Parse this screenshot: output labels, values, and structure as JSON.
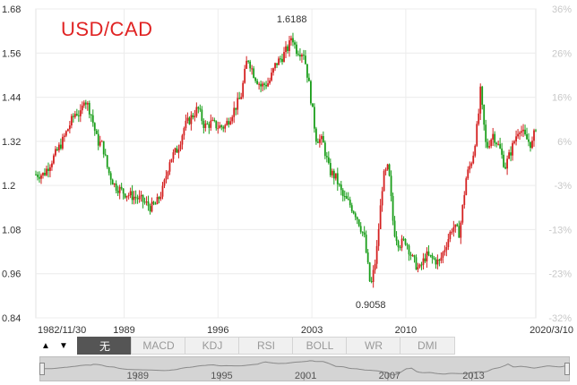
{
  "chart_data": {
    "type": "candlestick",
    "title": "USD/CAD",
    "x_start_label": "1982/11/30",
    "x_end_label": "2020/3/10",
    "x_ticks": [
      "1989",
      "1996",
      "2003",
      "2010"
    ],
    "y_ticks": [
      "0.84",
      "0.96",
      "1.08",
      "1.2",
      "1.32",
      "1.44",
      "1.56",
      "1.68"
    ],
    "y2_ticks": [
      "-32%",
      "-23%",
      "-13%",
      "-3%",
      "6%",
      "16%",
      "26%",
      "36%"
    ],
    "ylim": [
      0.84,
      1.68
    ],
    "max_label": "1.6188",
    "min_label": "0.9058",
    "up_color": "#d42020",
    "down_color": "#1a9e1a",
    "series": [
      {
        "t": 1982.92,
        "v": 1.23
      },
      {
        "t": 1983.5,
        "v": 1.23
      },
      {
        "t": 1984.3,
        "v": 1.28
      },
      {
        "t": 1984.9,
        "v": 1.32
      },
      {
        "t": 1985.5,
        "v": 1.37
      },
      {
        "t": 1985.9,
        "v": 1.4
      },
      {
        "t": 1986.3,
        "v": 1.39
      },
      {
        "t": 1986.5,
        "v": 1.44
      },
      {
        "t": 1987.0,
        "v": 1.4
      },
      {
        "t": 1987.5,
        "v": 1.32
      },
      {
        "t": 1987.9,
        "v": 1.31
      },
      {
        "t": 1988.3,
        "v": 1.24
      },
      {
        "t": 1988.8,
        "v": 1.2
      },
      {
        "t": 1989.5,
        "v": 1.18
      },
      {
        "t": 1990.2,
        "v": 1.17
      },
      {
        "t": 1990.8,
        "v": 1.16
      },
      {
        "t": 1991.5,
        "v": 1.14
      },
      {
        "t": 1991.9,
        "v": 1.15
      },
      {
        "t": 1992.4,
        "v": 1.19
      },
      {
        "t": 1992.9,
        "v": 1.27
      },
      {
        "t": 1993.5,
        "v": 1.3
      },
      {
        "t": 1994.0,
        "v": 1.36
      },
      {
        "t": 1994.6,
        "v": 1.39
      },
      {
        "t": 1995.0,
        "v": 1.41
      },
      {
        "t": 1995.5,
        "v": 1.36
      },
      {
        "t": 1996.0,
        "v": 1.37
      },
      {
        "t": 1996.5,
        "v": 1.36
      },
      {
        "t": 1997.0,
        "v": 1.36
      },
      {
        "t": 1997.6,
        "v": 1.4
      },
      {
        "t": 1998.2,
        "v": 1.44
      },
      {
        "t": 1998.7,
        "v": 1.55
      },
      {
        "t": 1999.2,
        "v": 1.5
      },
      {
        "t": 1999.7,
        "v": 1.47
      },
      {
        "t": 2000.3,
        "v": 1.48
      },
      {
        "t": 2000.8,
        "v": 1.53
      },
      {
        "t": 2001.3,
        "v": 1.55
      },
      {
        "t": 2001.8,
        "v": 1.58
      },
      {
        "t": 2002.0,
        "v": 1.61
      },
      {
        "t": 2002.3,
        "v": 1.57
      },
      {
        "t": 2002.9,
        "v": 1.56
      },
      {
        "t": 2003.3,
        "v": 1.47
      },
      {
        "t": 2003.8,
        "v": 1.33
      },
      {
        "t": 2004.3,
        "v": 1.32
      },
      {
        "t": 2004.8,
        "v": 1.24
      },
      {
        "t": 2005.3,
        "v": 1.22
      },
      {
        "t": 2005.8,
        "v": 1.17
      },
      {
        "t": 2006.3,
        "v": 1.15
      },
      {
        "t": 2006.8,
        "v": 1.12
      },
      {
        "t": 2007.4,
        "v": 1.06
      },
      {
        "t": 2007.88,
        "v": 0.92
      },
      {
        "t": 2008.3,
        "v": 1.01
      },
      {
        "t": 2008.8,
        "v": 1.22
      },
      {
        "t": 2009.2,
        "v": 1.25
      },
      {
        "t": 2009.6,
        "v": 1.08
      },
      {
        "t": 2010.0,
        "v": 1.04
      },
      {
        "t": 2010.5,
        "v": 1.05
      },
      {
        "t": 2011.0,
        "v": 1.0
      },
      {
        "t": 2011.5,
        "v": 0.97
      },
      {
        "t": 2012.0,
        "v": 1.01
      },
      {
        "t": 2012.5,
        "v": 1.0
      },
      {
        "t": 2013.0,
        "v": 0.99
      },
      {
        "t": 2013.5,
        "v": 1.04
      },
      {
        "t": 2014.0,
        "v": 1.09
      },
      {
        "t": 2014.5,
        "v": 1.07
      },
      {
        "t": 2015.0,
        "v": 1.22
      },
      {
        "t": 2015.5,
        "v": 1.28
      },
      {
        "t": 2015.9,
        "v": 1.38
      },
      {
        "t": 2016.05,
        "v": 1.46
      },
      {
        "t": 2016.5,
        "v": 1.3
      },
      {
        "t": 2017.0,
        "v": 1.34
      },
      {
        "t": 2017.5,
        "v": 1.3
      },
      {
        "t": 2017.9,
        "v": 1.25
      },
      {
        "t": 2018.4,
        "v": 1.3
      },
      {
        "t": 2018.95,
        "v": 1.36
      },
      {
        "t": 2019.4,
        "v": 1.33
      },
      {
        "t": 2019.9,
        "v": 1.31
      },
      {
        "t": 2020.19,
        "v": 1.36
      }
    ]
  },
  "toolbar": {
    "arrow_up": "▲",
    "arrow_down": "▼",
    "tabs": [
      {
        "label": "无",
        "active": true
      },
      {
        "label": "MACD",
        "active": false
      },
      {
        "label": "KDJ",
        "active": false
      },
      {
        "label": "RSI",
        "active": false
      },
      {
        "label": "BOLL",
        "active": false
      },
      {
        "label": "WR",
        "active": false
      },
      {
        "label": "DMI",
        "active": false
      }
    ]
  },
  "navigator": {
    "ticks": [
      "1989",
      "1995",
      "2001",
      "2007",
      "2013"
    ]
  }
}
